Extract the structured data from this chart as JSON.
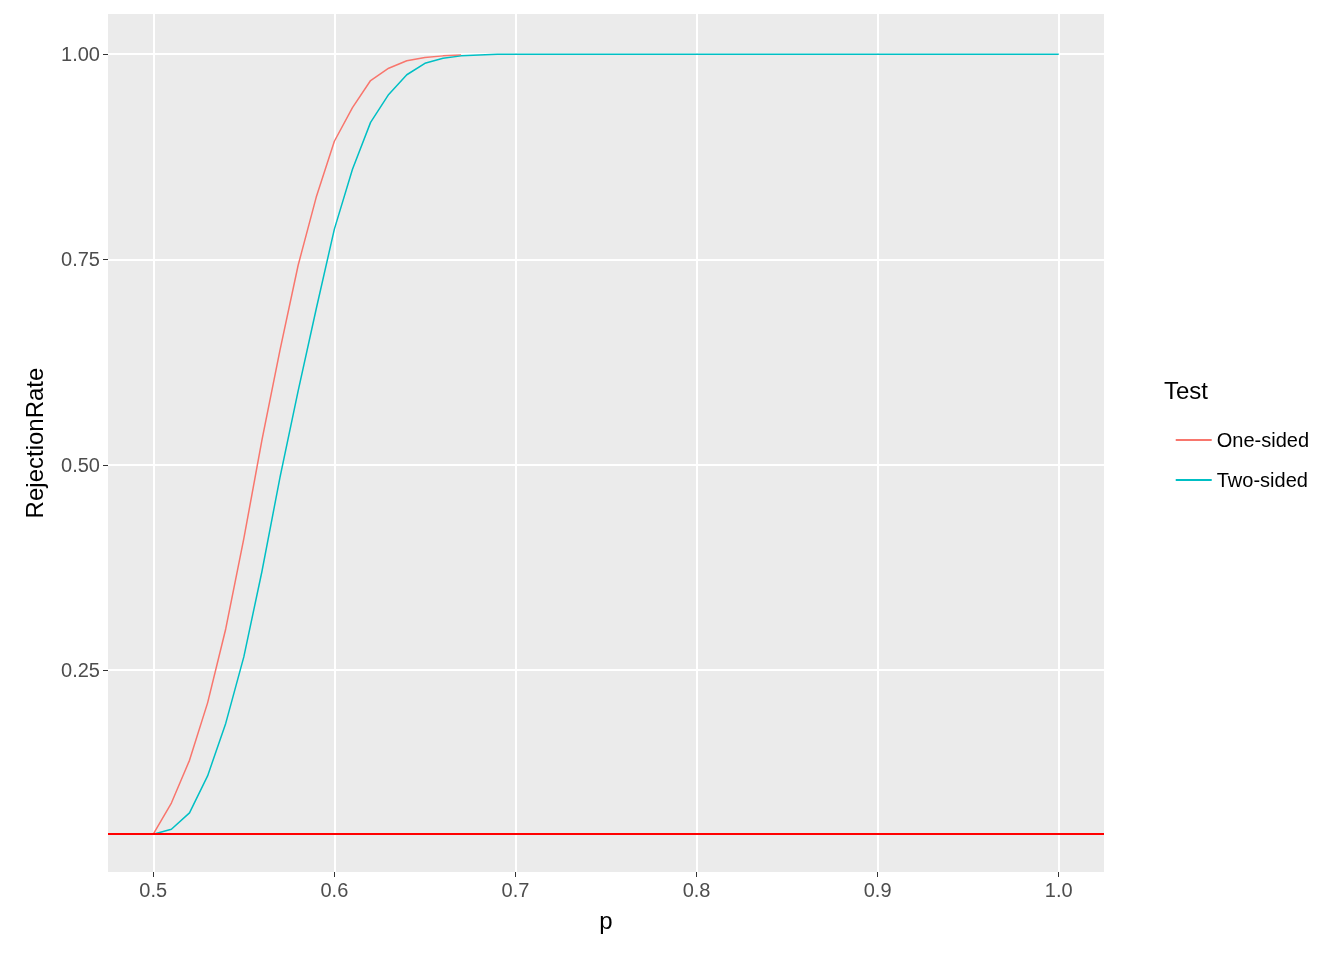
{
  "chart_data": {
    "type": "line",
    "xlabel": "p",
    "ylabel": "RejectionRate",
    "legend_title": "Test",
    "xlim": [
      0.475,
      1.025
    ],
    "xticks": [
      0.5,
      0.6,
      0.7,
      0.8,
      0.9,
      {
        "value": 1.0,
        "label": "1.0"
      }
    ],
    "ylim": [
      0.004,
      1.049
    ],
    "yticks": [
      0.25,
      {
        "value": 0.5,
        "label": "0.50"
      },
      0.75,
      {
        "value": 1.0,
        "label": "1.00"
      }
    ],
    "grid": true,
    "legend": "right",
    "marker": "none",
    "line_style": "solid",
    "ref_lines": [
      {
        "axis": "y",
        "value": 0.05,
        "label": null,
        "color": "#ff0000"
      }
    ],
    "series": [
      {
        "name": "One-sided",
        "color": "#f8766d",
        "x": [
          0.5,
          0.51,
          0.52,
          0.53,
          0.54,
          0.55,
          0.56,
          0.57,
          0.58,
          0.59,
          0.6,
          0.61,
          0.62,
          0.63,
          0.64,
          0.65,
          0.66,
          0.67
        ],
        "values": [
          0.05,
          0.088,
          0.14,
          0.21,
          0.3,
          0.41,
          0.53,
          0.64,
          0.743,
          0.826,
          0.894,
          0.935,
          0.968,
          0.983,
          0.992,
          0.996,
          0.998,
          0.999
        ]
      },
      {
        "name": "Two-sided",
        "color": "#00bfc4",
        "x": [
          0.5,
          0.51,
          0.52,
          0.53,
          0.54,
          0.55,
          0.56,
          0.57,
          0.58,
          0.59,
          0.6,
          0.61,
          0.62,
          0.63,
          0.64,
          0.65,
          0.66,
          0.67,
          0.68,
          0.69,
          1.0
        ],
        "values": [
          0.05,
          0.056,
          0.076,
          0.121,
          0.185,
          0.266,
          0.37,
          0.485,
          0.59,
          0.69,
          0.787,
          0.86,
          0.917,
          0.951,
          0.975,
          0.989,
          0.995,
          0.998,
          0.999,
          1.0,
          1.0
        ]
      }
    ]
  }
}
